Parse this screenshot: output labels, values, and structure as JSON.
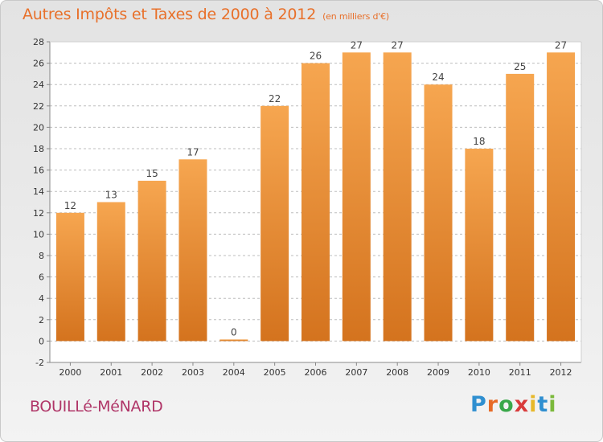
{
  "title": "Autres Impôts et Taxes de 2000 à 2012",
  "unit": "(en milliers d'€)",
  "place": "BOUILLé-MéNARD",
  "logo": {
    "letters": [
      "P",
      "r",
      "o",
      "x",
      "i",
      "t",
      "i"
    ]
  },
  "colors": {
    "title": "#e8702a",
    "place": "#b03668",
    "bar_top": "#f6a650",
    "bar_bottom": "#d4731e",
    "grid": "#bdbdbd"
  },
  "chart_data": {
    "type": "bar",
    "categories": [
      "2000",
      "2001",
      "2002",
      "2003",
      "2004",
      "2005",
      "2006",
      "2007",
      "2008",
      "2009",
      "2010",
      "2011",
      "2012"
    ],
    "values": [
      12,
      13,
      15,
      17,
      0,
      22,
      26,
      27,
      27,
      24,
      18,
      25,
      27
    ],
    "value_labels": [
      "12",
      "13",
      "15",
      "17",
      "0",
      "22",
      "26",
      "27",
      "27",
      "24",
      "18",
      "25",
      "27"
    ],
    "ylim": [
      -2,
      28
    ],
    "yticks": [
      -2,
      0,
      2,
      4,
      6,
      8,
      10,
      12,
      14,
      16,
      18,
      20,
      22,
      24,
      26,
      28
    ],
    "grid": true,
    "grid_style": "dashed",
    "xlabel": "",
    "ylabel": ""
  }
}
